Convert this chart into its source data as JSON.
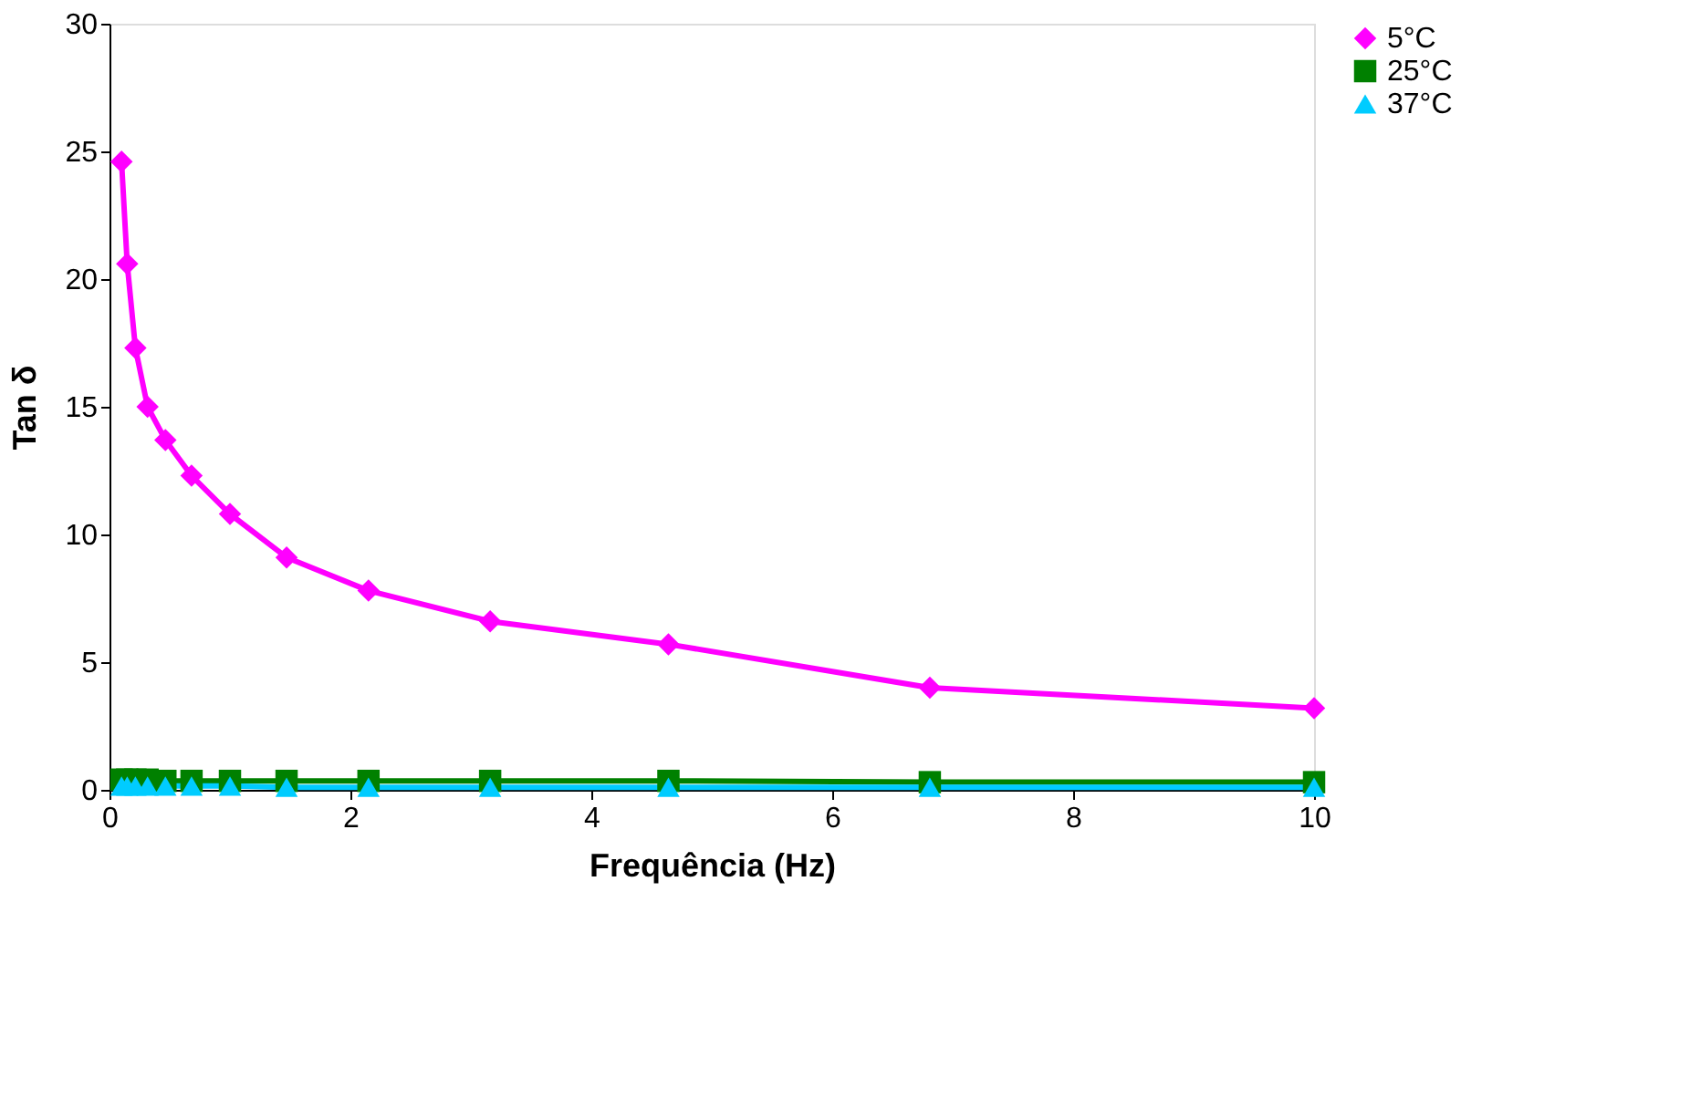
{
  "chart_data": {
    "type": "line",
    "xlabel": "Frequência (Hz)",
    "ylabel": "Tan δ",
    "x": [
      0.1,
      0.147,
      0.215,
      0.316,
      0.464,
      0.681,
      1,
      1.47,
      2.15,
      3.16,
      4.64,
      6.81,
      10
    ],
    "xlim": [
      0,
      10
    ],
    "xticks": [
      0,
      2,
      4,
      6,
      8,
      10
    ],
    "ylim": [
      0,
      30
    ],
    "yticks": [
      0,
      5,
      10,
      15,
      20,
      25,
      30
    ],
    "grid": false,
    "legend": "right",
    "line_style": "solid",
    "series": [
      {
        "name": "5°C",
        "color": "#ff00ff",
        "marker": "diamond",
        "values": [
          24.6,
          20.6,
          17.3,
          15.0,
          13.7,
          12.3,
          10.8,
          9.1,
          7.8,
          6.6,
          5.7,
          4.0,
          3.2
        ]
      },
      {
        "name": "25°C",
        "color": "#008000",
        "marker": "square",
        "values": [
          0.4,
          0.4,
          0.4,
          0.4,
          0.35,
          0.35,
          0.35,
          0.35,
          0.35,
          0.35,
          0.35,
          0.3,
          0.3
        ]
      },
      {
        "name": "37°C",
        "color": "#00ccff",
        "marker": "triangle",
        "values": [
          0.15,
          0.15,
          0.15,
          0.15,
          0.15,
          0.15,
          0.15,
          0.1,
          0.1,
          0.1,
          0.1,
          0.1,
          0.1
        ]
      }
    ]
  }
}
